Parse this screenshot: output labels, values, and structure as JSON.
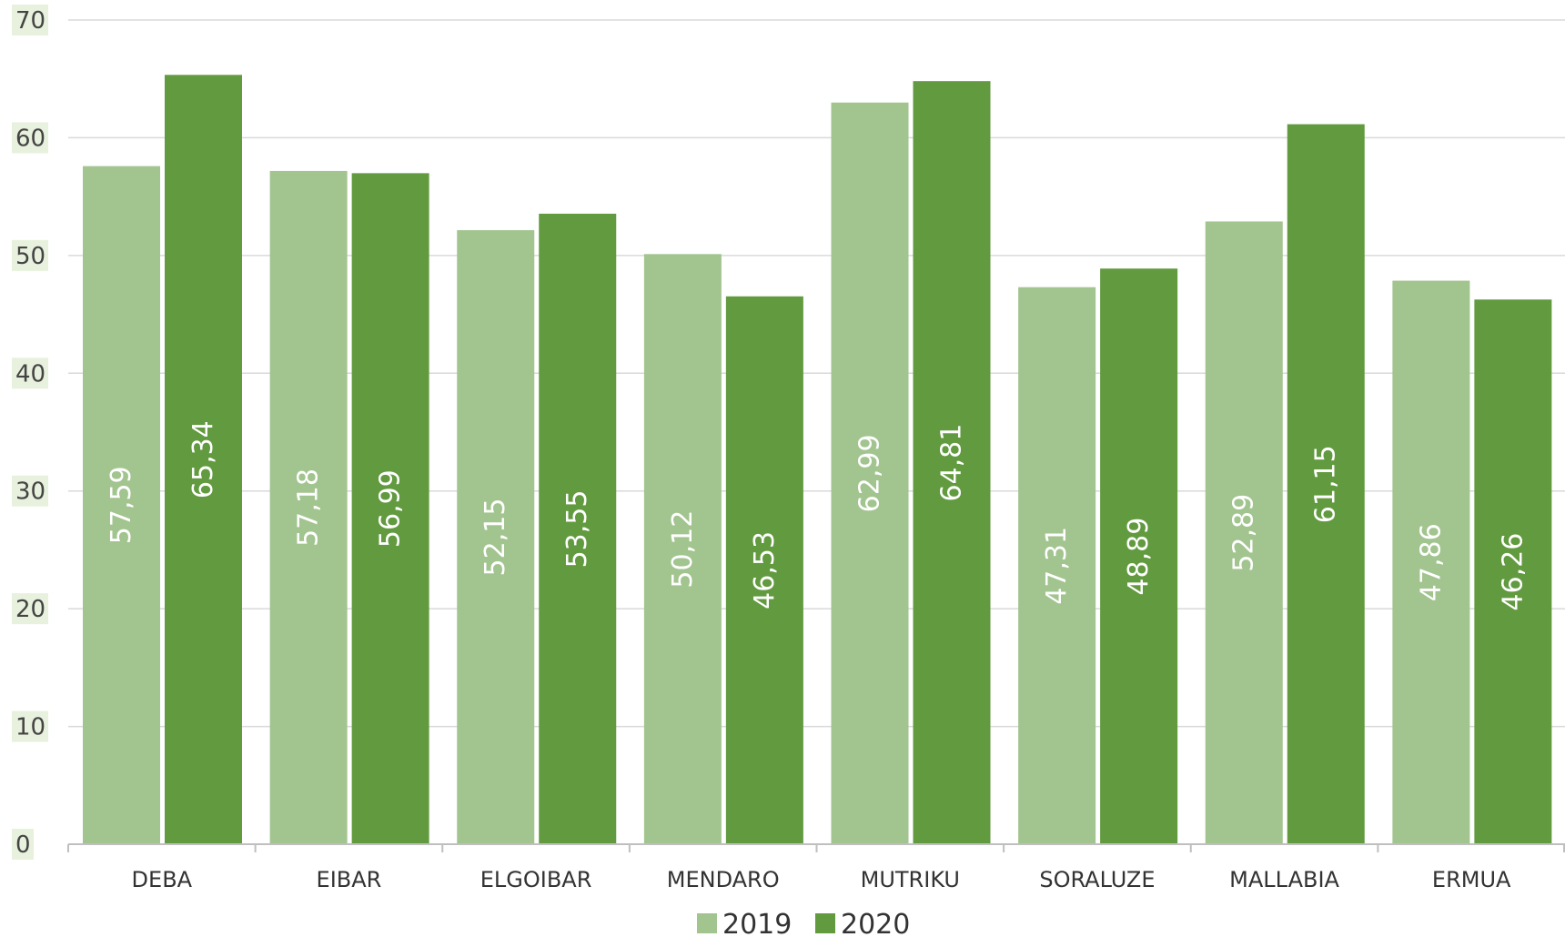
{
  "chart_data": {
    "type": "bar",
    "categories": [
      "DEBA",
      "EIBAR",
      "ELGOIBAR",
      "MENDARO",
      "MUTRIKU",
      "SORALUZE",
      "MALLABIA",
      "ERMUA"
    ],
    "series": [
      {
        "name": "2019",
        "color": "#a2c48f",
        "values": [
          57.59,
          57.18,
          52.15,
          50.12,
          62.99,
          47.31,
          52.89,
          47.86
        ],
        "labels": [
          "57,59",
          "57,18",
          "52,15",
          "50,12",
          "62,99",
          "47,31",
          "52,89",
          "47,86"
        ]
      },
      {
        "name": "2020",
        "color": "#629a3f",
        "values": [
          65.34,
          56.99,
          53.55,
          46.53,
          64.81,
          48.89,
          61.15,
          46.26
        ],
        "labels": [
          "65,34",
          "56,99",
          "53,55",
          "46,53",
          "64,81",
          "48,89",
          "61,15",
          "46,26"
        ]
      }
    ],
    "ylim": [
      0,
      70
    ],
    "yticks": [
      0,
      10,
      20,
      30,
      40,
      50,
      60,
      70
    ],
    "grid": true,
    "legend_position": "bottom",
    "title": "",
    "xlabel": "",
    "ylabel": ""
  }
}
